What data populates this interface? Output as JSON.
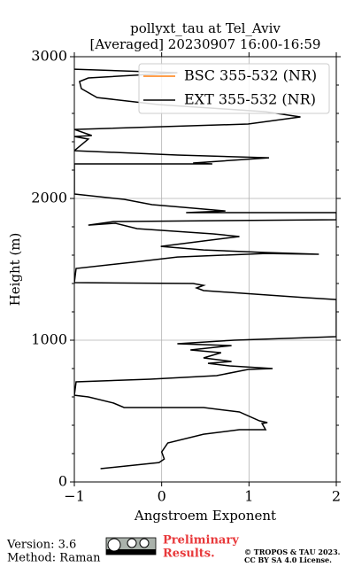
{
  "chart_data": {
    "type": "line",
    "title": [
      "pollyxt_tau at Tel_Aviv",
      "[Averaged] 20230907 16:00-16:59"
    ],
    "x_label": "Angstroem Exponent",
    "y_label": "Height (m)",
    "xlim": [
      -1,
      2
    ],
    "xticks": [
      {
        "value": -1,
        "label": "−1"
      },
      0,
      1,
      2
    ],
    "ylim": [
      0,
      3000
    ],
    "yticks": [
      0,
      1000,
      2000,
      3000
    ],
    "grid": true,
    "legend": "upper right",
    "series": [
      {
        "name": "BSC 355-532 (NR)",
        "color": "#ff7f0e",
        "x": [],
        "y": []
      },
      {
        "name": "EXT 355-532 (NR)",
        "color": "#000000",
        "x": [
          -0.7,
          -0.03,
          0.03,
          0,
          0.07,
          0.48,
          0.89,
          1.19,
          1.15,
          1.21,
          1.12,
          0.89,
          0.48,
          -0.43,
          -0.55,
          -0.84,
          -1.0,
          -0.98,
          -0.13,
          0.63,
          0.99,
          1.27,
          0.78,
          0.53,
          0.8,
          0.48,
          0.68,
          0.33,
          0.8,
          0.18,
          0.83,
          2.0,
          2.0,
          1.65,
          0.48,
          0.4,
          0.48,
          0.36,
          -1.0,
          -0.98,
          -0.33,
          0.18,
          1.19,
          1.8,
          1.19,
          0.48,
          -0.01,
          0.48,
          0.89,
          0.59,
          -0.28,
          -0.53,
          -0.84,
          -0.55,
          2.0,
          2.0,
          0.28,
          0.73,
          0.13,
          -0.11,
          -0.43,
          -1.0,
          -1.0,
          0.58,
          0.36,
          1.23,
          0.18,
          -1.0,
          -0.84,
          -1.0,
          -0.8,
          -1.0,
          0.99,
          1.59,
          1.19,
          -0.03,
          -0.74,
          -0.92,
          -0.94,
          -0.84,
          0.18,
          -1.0
        ],
        "y": [
          94,
          137,
          162,
          212,
          275,
          337,
          369,
          369,
          412,
          419,
          431,
          494,
          525,
          525,
          556,
          600,
          612,
          706,
          725,
          750,
          794,
          800,
          819,
          837,
          850,
          875,
          912,
          931,
          962,
          975,
          1000,
          1025,
          1287,
          1300,
          1350,
          1369,
          1387,
          1400,
          1406,
          1506,
          1550,
          1587,
          1612,
          1606,
          1619,
          1637,
          1662,
          1700,
          1731,
          1750,
          1787,
          1825,
          1812,
          1837,
          1850,
          1900,
          1900,
          1912,
          1944,
          1956,
          1994,
          2031,
          2244,
          2244,
          2250,
          2287,
          2306,
          2337,
          2419,
          2437,
          2444,
          2487,
          2525,
          2575,
          2612,
          2662,
          2712,
          2775,
          2825,
          2850,
          2887,
          2912
        ]
      }
    ]
  },
  "footer": {
    "version": "Version: 3.6",
    "method": "Method: Raman",
    "preliminary": [
      "Preliminary",
      "Results."
    ],
    "license": [
      "© TROPOS & TAU 2023.",
      "CC BY SA 4.0 License."
    ]
  }
}
